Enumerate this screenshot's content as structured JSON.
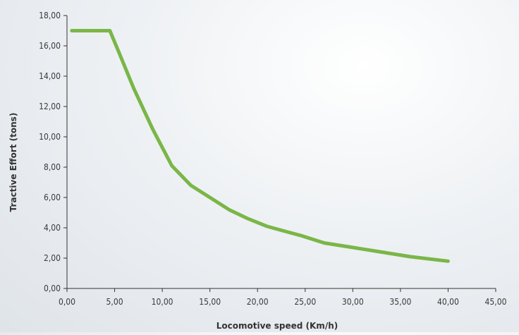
{
  "chart_data": {
    "type": "line",
    "title": "",
    "xlabel": "Locomotive speed (Km/h)",
    "ylabel": "Tractive Effort (tons)",
    "xlim": [
      0,
      45
    ],
    "ylim": [
      0,
      18
    ],
    "x_ticks": [
      "0,00",
      "5,00",
      "10,00",
      "15,00",
      "20,00",
      "25,00",
      "30,00",
      "35,00",
      "40,00",
      "45,00"
    ],
    "y_ticks": [
      "0,00",
      "2,00",
      "4,00",
      "6,00",
      "8,00",
      "10,00",
      "12,00",
      "14,00",
      "16,00",
      "18,00"
    ],
    "grid": false,
    "series": [
      {
        "color": "#7ab648",
        "x": [
          0.5,
          4.5,
          5.5,
          7,
          9,
          11,
          13,
          15,
          17,
          19,
          21,
          23,
          24.5,
          27,
          30,
          33,
          36,
          40
        ],
        "y": [
          17.0,
          17.0,
          15.5,
          13.2,
          10.5,
          8.1,
          6.8,
          6.0,
          5.2,
          4.6,
          4.1,
          3.75,
          3.5,
          3.0,
          2.7,
          2.4,
          2.1,
          1.8
        ]
      }
    ]
  }
}
